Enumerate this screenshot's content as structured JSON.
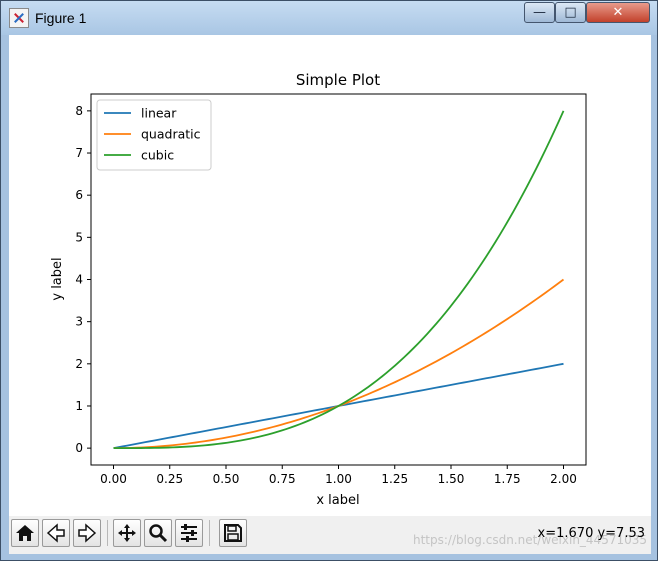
{
  "window": {
    "title": "Figure 1",
    "minimize_glyph": "—",
    "maximize_glyph": "□",
    "close_glyph": "✕"
  },
  "toolbar": {
    "buttons": [
      {
        "name": "home-button",
        "icon": "home-icon"
      },
      {
        "name": "back-button",
        "icon": "arrow-left-icon"
      },
      {
        "name": "forward-button",
        "icon": "arrow-right-icon"
      },
      {
        "name": "pan-button",
        "icon": "move-icon"
      },
      {
        "name": "zoom-button",
        "icon": "magnifier-icon"
      },
      {
        "name": "configure-subplots-button",
        "icon": "sliders-icon"
      },
      {
        "name": "save-button",
        "icon": "floppy-disk-icon"
      }
    ],
    "coords": "x=1.670 y=7.53",
    "watermark": "https://blog.csdn.net/weixin_44571035"
  },
  "chart_data": {
    "type": "line",
    "title": "Simple Plot",
    "xlabel": "x label",
    "ylabel": "y label",
    "xlim": [
      -0.1,
      2.1
    ],
    "ylim": [
      -0.4,
      8.4
    ],
    "x_ticks": [
      0.0,
      0.25,
      0.5,
      0.75,
      1.0,
      1.25,
      1.5,
      1.75,
      2.0
    ],
    "x_tick_labels": [
      "0.00",
      "0.25",
      "0.50",
      "0.75",
      "1.00",
      "1.25",
      "1.50",
      "1.75",
      "2.00"
    ],
    "y_ticks": [
      0,
      1,
      2,
      3,
      4,
      5,
      6,
      7,
      8
    ],
    "y_tick_labels": [
      "0",
      "1",
      "2",
      "3",
      "4",
      "5",
      "6",
      "7",
      "8"
    ],
    "x_range": [
      0,
      2
    ],
    "num_points": 100,
    "series": [
      {
        "name": "linear",
        "exponent": 1,
        "color": "#1f77b4"
      },
      {
        "name": "quadratic",
        "exponent": 2,
        "color": "#ff7f0e"
      },
      {
        "name": "cubic",
        "exponent": 3,
        "color": "#2ca02c"
      }
    ],
    "legend": "upper-left",
    "grid": false
  }
}
